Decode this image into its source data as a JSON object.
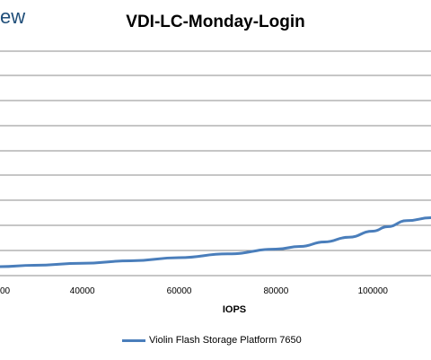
{
  "logo_text": "ew",
  "chart_data": {
    "type": "line",
    "title": "VDI-LC-Monday-Login",
    "xlabel": "IOPS",
    "ylabel": "",
    "xlim": [
      23000,
      112000
    ],
    "ylim": [
      0,
      1
    ],
    "x_ticks": [
      "40000",
      "60000",
      "80000",
      "100000"
    ],
    "x_tick_values": [
      40000,
      60000,
      80000,
      100000
    ],
    "visible_partial_tick": "00",
    "grid": true,
    "legend_position": "bottom",
    "series": [
      {
        "name": "Violin Flash Storage Platform 7650",
        "color": "#4a7ebb",
        "x": [
          23000,
          30000,
          40000,
          50000,
          60000,
          70000,
          80000,
          85000,
          90000,
          95000,
          100000,
          103000,
          107000,
          112000
        ],
        "y": [
          0.04,
          0.046,
          0.055,
          0.066,
          0.08,
          0.097,
          0.118,
          0.13,
          0.15,
          0.171,
          0.198,
          0.218,
          0.245,
          0.258
        ]
      }
    ]
  }
}
